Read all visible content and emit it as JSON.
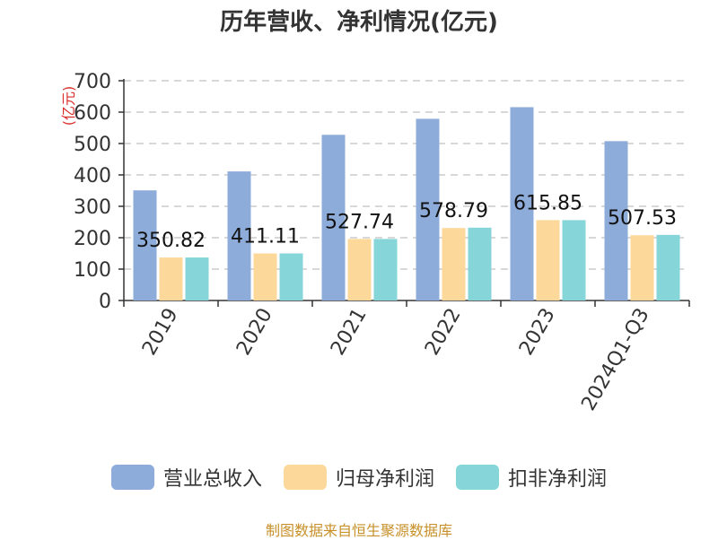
{
  "title": "历年营收、净利情况(亿元)",
  "source": "制图数据来自恒生聚源数据库",
  "chart_data": {
    "type": "bar",
    "title": "历年营收、净利情况(亿元)",
    "ylabel": "(亿元)",
    "xlabel": "",
    "ylim": [
      0,
      700
    ],
    "yticks": [
      0,
      100,
      200,
      300,
      400,
      500,
      600,
      700
    ],
    "grid": true,
    "legend_position": "bottom",
    "categories": [
      "2019",
      "2020",
      "2021",
      "2022",
      "2023",
      "2024Q1-Q3"
    ],
    "series": [
      {
        "name": "营业总收入",
        "color": "#8eacd9",
        "values": [
          350.82,
          411.11,
          527.74,
          578.79,
          615.85,
          507.53
        ]
      },
      {
        "name": "归母净利润",
        "color": "#fdd89b",
        "values": [
          137,
          150,
          196,
          231,
          256,
          208
        ]
      },
      {
        "name": "扣非净利润",
        "color": "#86d5d8",
        "values": [
          137,
          150,
          196,
          232,
          256,
          209
        ]
      }
    ],
    "data_labels": [
      "350.82",
      "411.11",
      "527.74",
      "578.79",
      "615.85",
      "507.53"
    ]
  }
}
